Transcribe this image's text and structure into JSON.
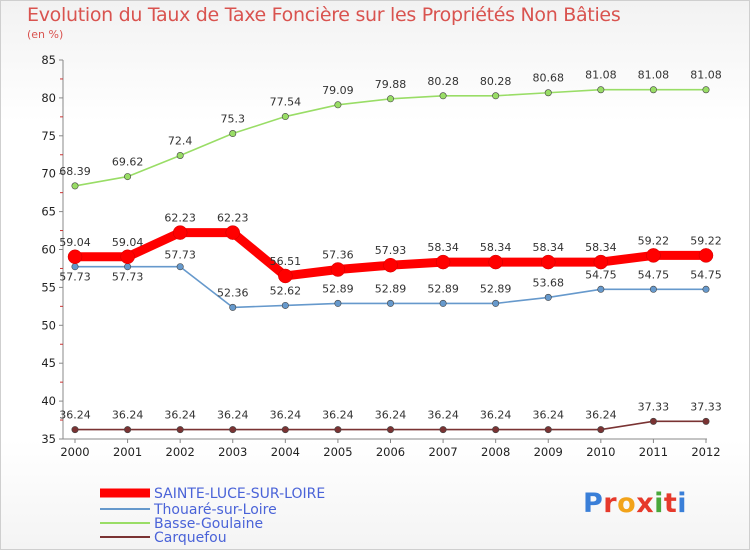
{
  "chart_data": {
    "type": "line",
    "title": "Evolution du Taux de Taxe Foncière sur les Propriétés Non Bâties",
    "ylabel": "(en %)",
    "xlabel": "",
    "ylim": [
      35,
      85
    ],
    "yticks": [
      "35",
      "40",
      "45",
      "50",
      "55",
      "60",
      "65",
      "70",
      "75",
      "80",
      "85"
    ],
    "x": [
      "2000",
      "2001",
      "2002",
      "2003",
      "2004",
      "2005",
      "2006",
      "2007",
      "2008",
      "2009",
      "2010",
      "2011",
      "2012"
    ],
    "series": [
      {
        "name": "SAINTE-LUCE-SUR-LOIRE",
        "color": "#ff0000",
        "values": [
          59.04,
          59.04,
          62.23,
          62.23,
          56.51,
          57.36,
          57.93,
          58.34,
          58.34,
          58.34,
          58.34,
          59.22,
          59.22
        ],
        "labels": [
          "59.04",
          "59.04",
          "62.23",
          "62.23",
          "56.51",
          "57.36",
          "57.93",
          "58.34",
          "58.34",
          "58.34",
          "58.34",
          "59.22",
          "59.22"
        ]
      },
      {
        "name": "Thouaré-sur-Loire",
        "color": "#6699cc",
        "values": [
          57.73,
          57.73,
          57.73,
          52.36,
          52.62,
          52.89,
          52.89,
          52.89,
          52.89,
          53.68,
          54.75,
          54.75,
          54.75
        ],
        "labels": [
          "57.73",
          "57.73",
          "57.73",
          "52.36",
          "52.62",
          "52.89",
          "52.89",
          "52.89",
          "52.89",
          "53.68",
          "54.75",
          "54.75",
          "54.75"
        ]
      },
      {
        "name": "Basse-Goulaine",
        "color": "#99dd66",
        "values": [
          68.39,
          69.62,
          72.4,
          75.3,
          77.54,
          79.09,
          79.88,
          80.28,
          80.28,
          80.68,
          81.08,
          81.08,
          81.08
        ],
        "labels": [
          "68.39",
          "69.62",
          "72.4",
          "75.3",
          "77.54",
          "79.09",
          "79.88",
          "80.28",
          "80.28",
          "80.68",
          "81.08",
          "81.08",
          "81.08"
        ]
      },
      {
        "name": "Carquefou",
        "color": "#7a3333",
        "values": [
          36.24,
          36.24,
          36.24,
          36.24,
          36.24,
          36.24,
          36.24,
          36.24,
          36.24,
          36.24,
          36.24,
          37.33,
          37.33
        ],
        "labels": [
          "36.24",
          "36.24",
          "36.24",
          "36.24",
          "36.24",
          "36.24",
          "36.24",
          "36.24",
          "36.24",
          "36.24",
          "36.24",
          "37.33",
          "37.33"
        ]
      }
    ],
    "legend_position": "bottom-left",
    "grid": false
  },
  "legend": {
    "text_color": "#4a63d8"
  },
  "branding": {
    "logo_letters": [
      "P",
      "r",
      "o",
      "x",
      "i",
      "t",
      "i"
    ],
    "logo_colors": [
      "#3a7fd8",
      "#e6392b",
      "#f2a31a",
      "#e6392b",
      "#4aa83b",
      "#e6392b",
      "#3a7fd8"
    ]
  }
}
